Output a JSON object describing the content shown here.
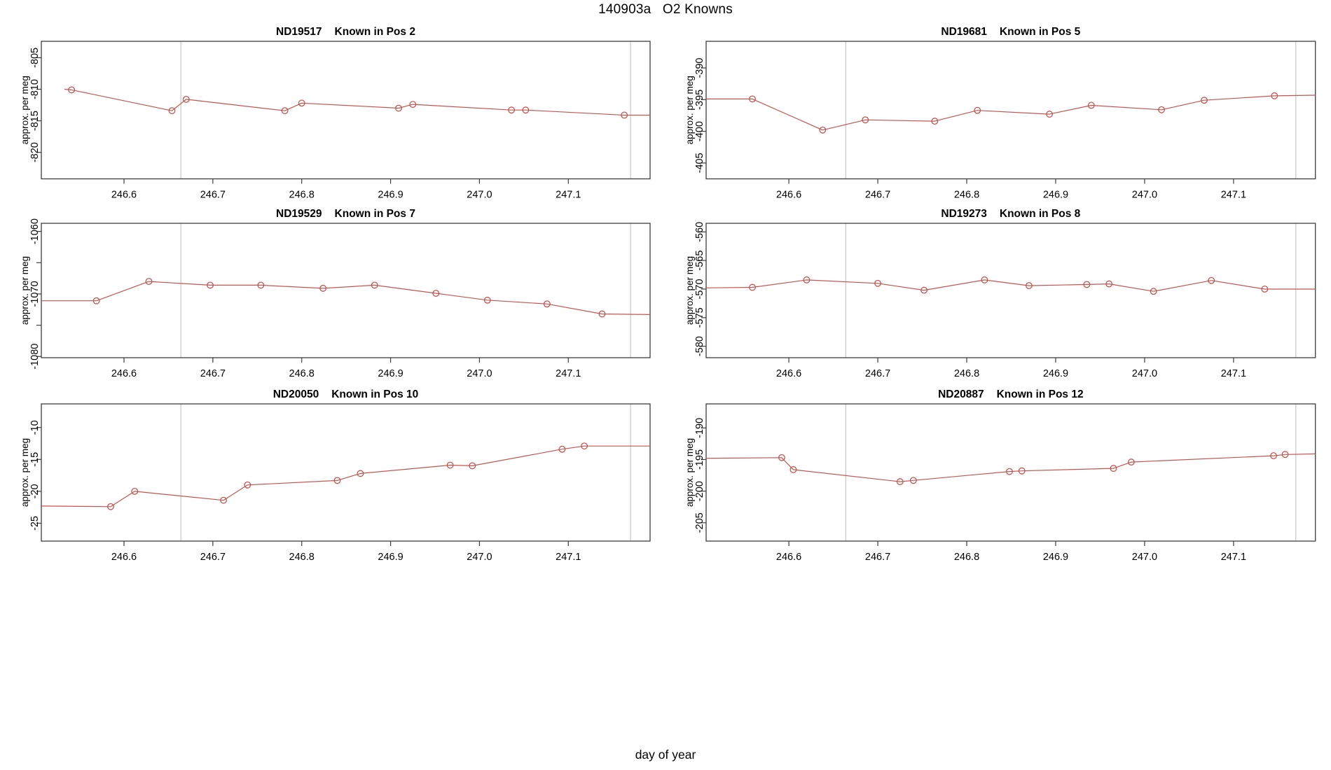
{
  "figure_title": "140903a   O2 Knowns",
  "x_axis_title": "day of year",
  "colors": {
    "series": "#c35551",
    "session_line": "#c6c6c6",
    "box": "#3d3d3d",
    "text": "#000000",
    "background": "#ffffff"
  },
  "chart_data": [
    {
      "type": "line",
      "title_id": "ND19517",
      "title_pos": "Known in Pos 2",
      "ylabel": "approx. per meg",
      "xlim": [
        246.507,
        247.192
      ],
      "ylim": [
        -824.2,
        -802.4
      ],
      "xticks": [
        246.6,
        246.7,
        246.8,
        246.9,
        247.0,
        247.1
      ],
      "xtick_labels": [
        "246.6",
        "246.7",
        "246.8",
        "246.9",
        "247.0",
        "247.1"
      ],
      "yticks": [
        -820,
        -815,
        -810,
        -805
      ],
      "ytick_labels": [
        "-820",
        "-815",
        "-810",
        "-805"
      ],
      "vlines": [
        246.664,
        247.17
      ],
      "line_start": [
        246.533,
        -810.0
      ],
      "line_end": [
        247.192,
        -814.1
      ],
      "x": [
        246.541,
        246.654,
        246.67,
        246.781,
        246.8,
        246.909,
        246.925,
        247.036,
        247.052,
        247.163
      ],
      "y": [
        -810.1,
        -813.4,
        -811.6,
        -813.4,
        -812.2,
        -813.0,
        -812.4,
        -813.3,
        -813.3,
        -814.1
      ]
    },
    {
      "type": "line",
      "title_id": "ND19681",
      "title_pos": "Known in Pos 5",
      "ylabel": "approx. per meg",
      "xlim": [
        246.507,
        247.192
      ],
      "ylim": [
        -407.5,
        -385.8
      ],
      "xticks": [
        246.6,
        246.7,
        246.8,
        246.9,
        247.0,
        247.1
      ],
      "xtick_labels": [
        "246.6",
        "246.7",
        "246.8",
        "246.9",
        "247.0",
        "247.1"
      ],
      "yticks": [
        -405,
        -400,
        -395,
        -390
      ],
      "ytick_labels": [
        "-405",
        "-400",
        "-395",
        "-390"
      ],
      "vlines": [
        246.664,
        247.17
      ],
      "line_start": [
        246.507,
        -394.9
      ],
      "line_end": [
        247.192,
        -394.3
      ],
      "x": [
        246.559,
        246.638,
        246.686,
        246.764,
        246.812,
        246.893,
        246.94,
        247.019,
        247.067,
        247.146
      ],
      "y": [
        -394.9,
        -399.8,
        -398.2,
        -398.4,
        -396.7,
        -397.3,
        -395.9,
        -396.6,
        -395.1,
        -394.4
      ]
    },
    {
      "type": "line",
      "title_id": "ND19529",
      "title_pos": "Known in Pos 7",
      "ylabel": "approx. per meg",
      "xlim": [
        246.507,
        247.192
      ],
      "ylim": [
        -1080.2,
        -1058.7
      ],
      "xticks": [
        246.6,
        246.7,
        246.8,
        246.9,
        247.0,
        247.1
      ],
      "xtick_labels": [
        "246.6",
        "246.7",
        "246.8",
        "246.9",
        "247.0",
        "247.1"
      ],
      "yticks": [
        -1080,
        -1075,
        -1070,
        -1065,
        -1060
      ],
      "ytick_labels": [
        "-1080",
        "",
        "-1070",
        "",
        "-1060"
      ],
      "vlines": [
        246.664,
        247.17
      ],
      "line_start": [
        246.507,
        -1071.1
      ],
      "line_end": [
        247.192,
        -1073.3
      ],
      "x": [
        246.569,
        246.628,
        246.697,
        246.754,
        246.824,
        246.882,
        246.951,
        247.009,
        247.076,
        247.138
      ],
      "y": [
        -1071.1,
        -1068.0,
        -1068.6,
        -1068.6,
        -1069.1,
        -1068.6,
        -1069.9,
        -1071.0,
        -1071.6,
        -1073.2
      ]
    },
    {
      "type": "line",
      "title_id": "ND19273",
      "title_pos": "Known in Pos 8",
      "ylabel": "approx. per meg",
      "xlim": [
        246.507,
        247.192
      ],
      "ylim": [
        -582.0,
        -558.5
      ],
      "xticks": [
        246.6,
        246.7,
        246.8,
        246.9,
        247.0,
        247.1
      ],
      "xtick_labels": [
        "246.6",
        "246.7",
        "246.8",
        "246.9",
        "247.0",
        "247.1"
      ],
      "yticks": [
        -580,
        -575,
        -570,
        -565,
        -560
      ],
      "ytick_labels": [
        "-580",
        "-575",
        "-570",
        "-565",
        "-560"
      ],
      "vlines": [
        246.664,
        247.17
      ],
      "line_start": [
        246.507,
        -569.8
      ],
      "line_end": [
        247.192,
        -570.0
      ],
      "x": [
        246.559,
        246.62,
        246.7,
        246.752,
        246.82,
        246.87,
        246.935,
        246.96,
        247.01,
        247.075,
        247.135
      ],
      "y": [
        -569.7,
        -568.4,
        -569.0,
        -570.2,
        -568.4,
        -569.4,
        -569.2,
        -569.1,
        -570.4,
        -568.5,
        -570.0
      ]
    },
    {
      "type": "line",
      "title_id": "ND20050",
      "title_pos": "Known in Pos 10",
      "ylabel": "approx. per meg",
      "xlim": [
        246.507,
        247.192
      ],
      "ylim": [
        -27.8,
        -6.3
      ],
      "xticks": [
        246.6,
        246.7,
        246.8,
        246.9,
        247.0,
        247.1
      ],
      "xtick_labels": [
        "246.6",
        "246.7",
        "246.8",
        "246.9",
        "247.0",
        "247.1"
      ],
      "yticks": [
        -25,
        -20,
        -15,
        -10
      ],
      "ytick_labels": [
        "-25",
        "-20",
        "-15",
        "-10"
      ],
      "vlines": [
        246.664,
        247.17
      ],
      "line_start": [
        246.507,
        -22.3
      ],
      "line_end": [
        247.192,
        -12.9
      ],
      "x": [
        246.585,
        246.612,
        246.712,
        246.739,
        246.84,
        246.866,
        246.967,
        246.992,
        247.093,
        247.118
      ],
      "y": [
        -22.4,
        -20.0,
        -21.4,
        -19.0,
        -18.3,
        -17.2,
        -15.9,
        -16.0,
        -13.4,
        -12.9
      ]
    },
    {
      "type": "line",
      "title_id": "ND20887",
      "title_pos": "Known in Pos 12",
      "ylabel": "approx. per meg",
      "xlim": [
        246.507,
        247.192
      ],
      "ylim": [
        -207.9,
        -186.2
      ],
      "xticks": [
        246.6,
        246.7,
        246.8,
        246.9,
        247.0,
        247.1
      ],
      "xtick_labels": [
        "246.6",
        "246.7",
        "246.8",
        "246.9",
        "247.0",
        "247.1"
      ],
      "yticks": [
        -205,
        -200,
        -195,
        -190
      ],
      "ytick_labels": [
        "-205",
        "-200",
        "-195",
        "-190"
      ],
      "vlines": [
        246.664,
        247.17
      ],
      "line_start": [
        246.507,
        -194.8
      ],
      "line_end": [
        247.192,
        -194.1
      ],
      "x": [
        246.592,
        246.605,
        246.725,
        246.74,
        246.848,
        246.862,
        246.965,
        246.985,
        247.145,
        247.158
      ],
      "y": [
        -194.7,
        -196.6,
        -198.5,
        -198.3,
        -196.9,
        -196.8,
        -196.4,
        -195.4,
        -194.4,
        -194.2
      ]
    }
  ]
}
